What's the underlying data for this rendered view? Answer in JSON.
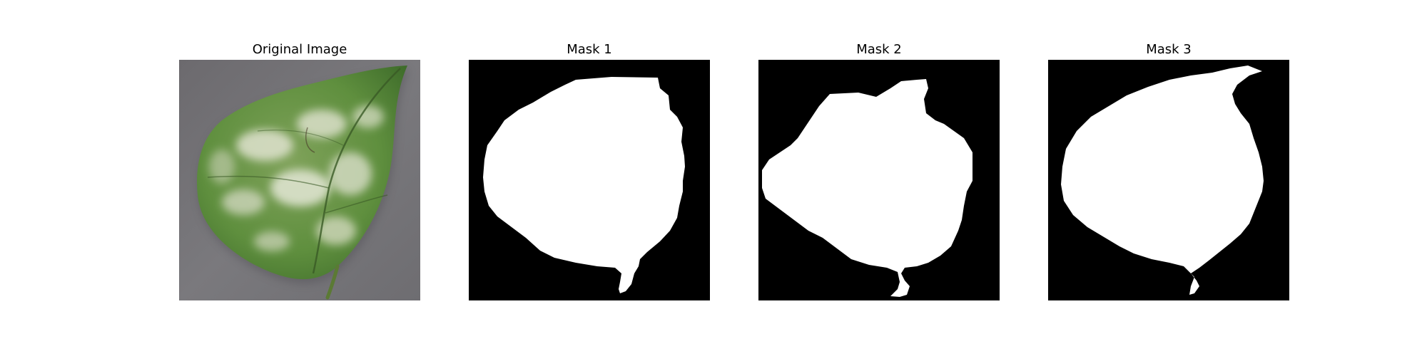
{
  "figure": {
    "panels": [
      {
        "title": "Original Image",
        "kind": "photo"
      },
      {
        "title": "Mask 1",
        "kind": "mask"
      },
      {
        "title": "Mask 2",
        "kind": "mask"
      },
      {
        "title": "Mask 3",
        "kind": "mask"
      }
    ]
  },
  "colors": {
    "background": "#ffffff",
    "photo_ground": "#77767a",
    "leaf_green": "#5a8a3c",
    "leaf_dark": "#3f6b2a",
    "mildew_white": "#d9dcc8",
    "mask_background": "#000000",
    "mask_foreground": "#ffffff"
  }
}
